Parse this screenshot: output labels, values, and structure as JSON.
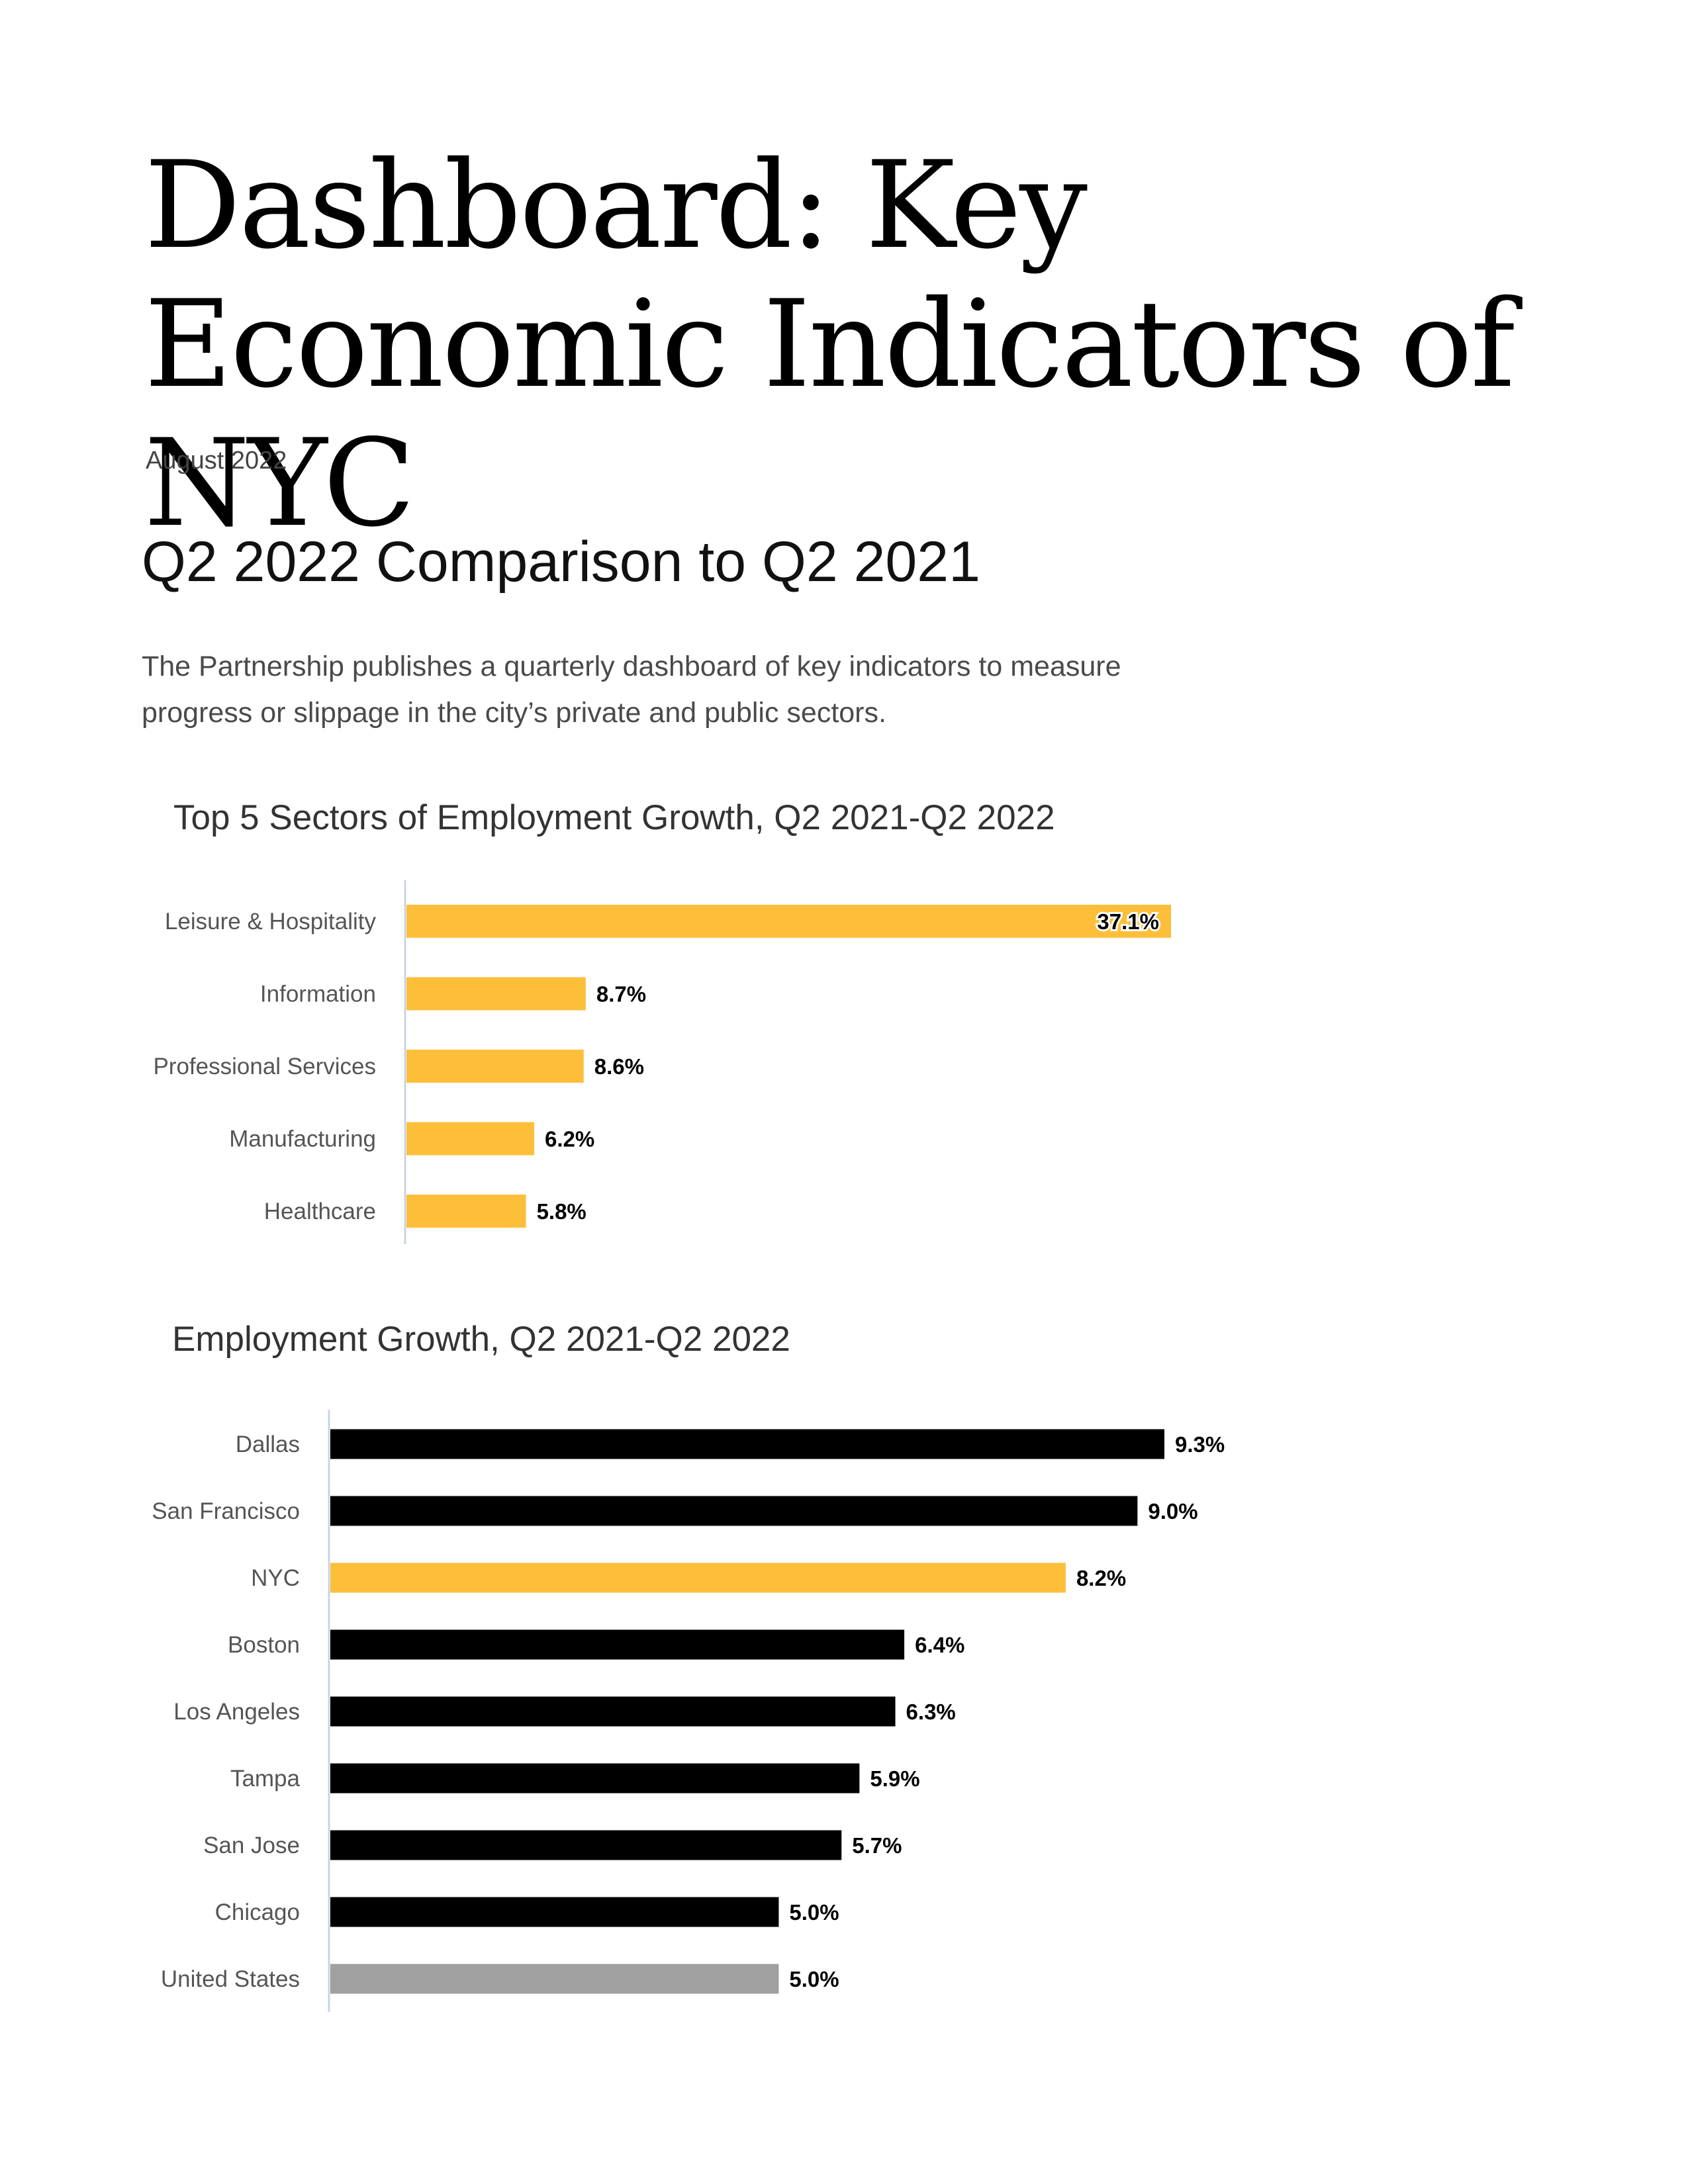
{
  "page": {
    "title": "Dashboard: Key Economic Indicators of NYC",
    "date": "August 2022",
    "section_heading": "Q2 2022 Comparison to Q2 2021",
    "intro": "The Partnership publishes a quarterly dashboard of key indicators to measure progress or slippage in the city’s private and public sectors."
  },
  "colors": {
    "nyc_yellow": "#FDBF3A",
    "black": "#000000",
    "us_gray": "#A0A0A0",
    "axis": "#C9D3E6"
  },
  "chart_data": [
    {
      "type": "bar",
      "orientation": "horizontal",
      "title": "Top 5 Sectors of Employment Growth, Q2 2021-Q2 2022",
      "categories": [
        "Leisure & Hospitality",
        "Information",
        "Professional Services",
        "Manufacturing",
        "Healthcare"
      ],
      "values": [
        37.1,
        8.7,
        8.6,
        6.2,
        5.8
      ],
      "value_labels": [
        "37.1%",
        "8.7%",
        "8.6%",
        "6.2%",
        "5.8%"
      ],
      "colors": [
        "#FDBF3A",
        "#FDBF3A",
        "#FDBF3A",
        "#FDBF3A",
        "#FDBF3A"
      ],
      "xlim": [
        0,
        37.1
      ],
      "grid": false,
      "legend": "none"
    },
    {
      "type": "bar",
      "orientation": "horizontal",
      "title": "Employment Growth, Q2 2021-Q2 2022",
      "categories": [
        "Dallas",
        "San Francisco",
        "NYC",
        "Boston",
        "Los Angeles",
        "Tampa",
        "San Jose",
        "Chicago",
        "United States"
      ],
      "values": [
        9.3,
        9.0,
        8.2,
        6.4,
        6.3,
        5.9,
        5.7,
        5.0,
        5.0
      ],
      "value_labels": [
        "9.3%",
        "9.0%",
        "8.2%",
        "6.4%",
        "6.3%",
        "5.9%",
        "5.7%",
        "5.0%",
        "5.0%"
      ],
      "colors": [
        "#000000",
        "#000000",
        "#FDBF3A",
        "#000000",
        "#000000",
        "#000000",
        "#000000",
        "#000000",
        "#A0A0A0"
      ],
      "xlim": [
        0,
        9.3
      ],
      "grid": false,
      "legend": "none"
    }
  ]
}
